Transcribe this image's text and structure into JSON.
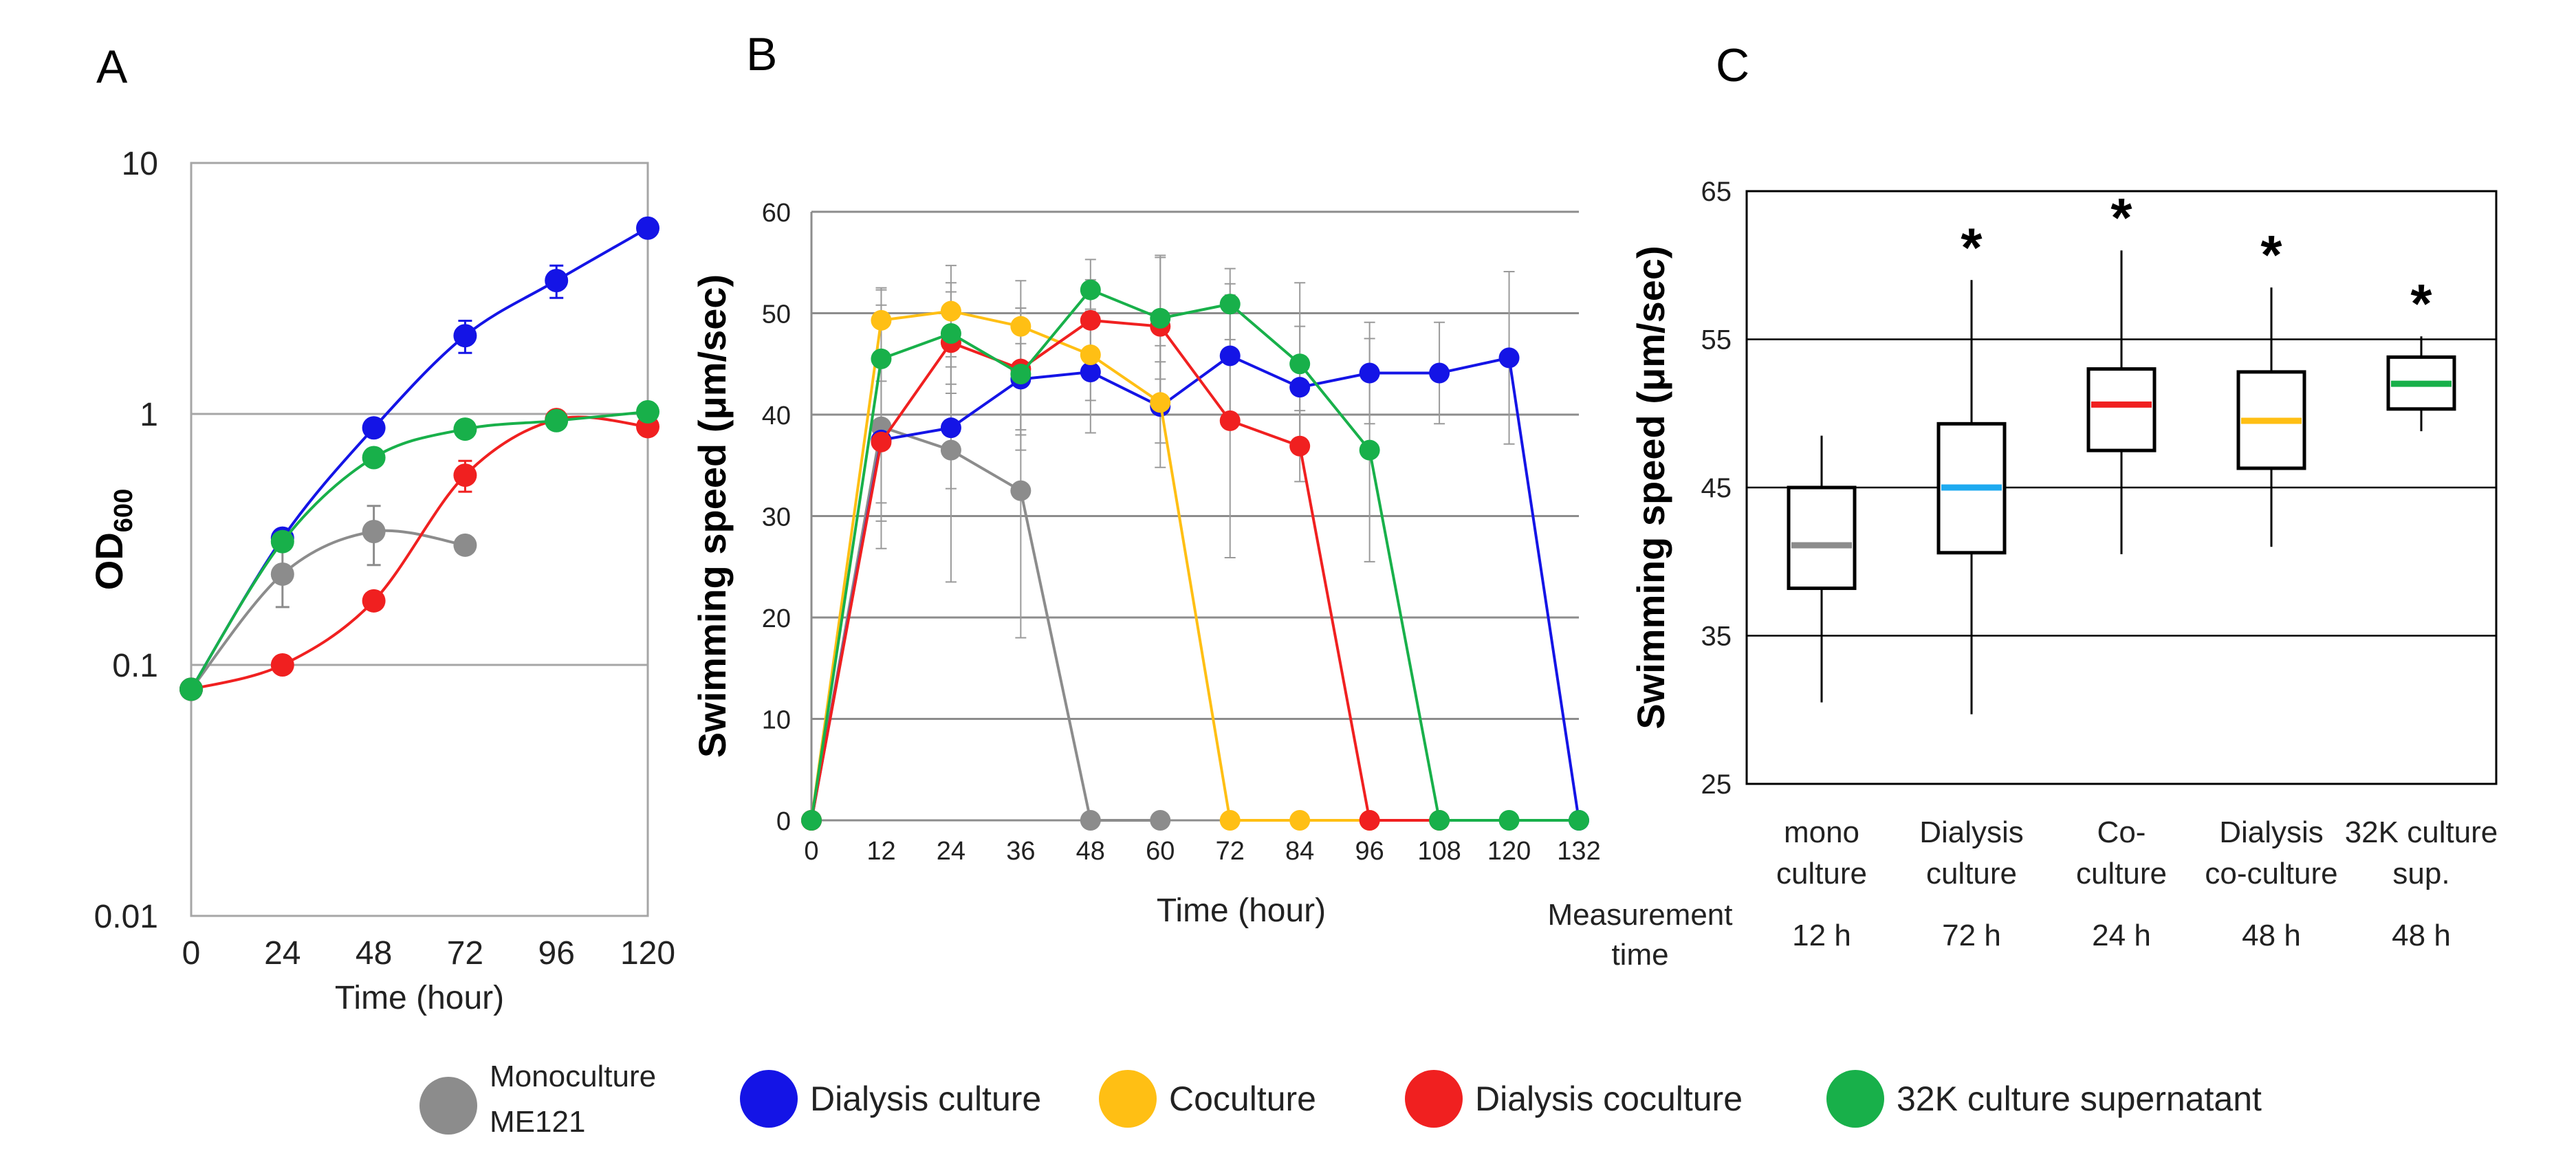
{
  "colors": {
    "monoculture": "#8c8c8c",
    "dialysis_culture": "#1414e6",
    "coculture": "#ffbf14",
    "dialysis_coculture": "#f02020",
    "supernatant": "#18b04a",
    "box_mono": "#8c8c8c",
    "box_dialysis": "#1eaaf0",
    "box_coculture": "#f02020",
    "box_dialysis_coculture": "#ffbf14",
    "box_supernatant": "#18b04a"
  },
  "legend": {
    "items": [
      {
        "key": "monoculture",
        "label": "Monoculture\nME121"
      },
      {
        "key": "dialysis_culture",
        "label": "Dialysis culture"
      },
      {
        "key": "coculture",
        "label": "Coculture"
      },
      {
        "key": "dialysis_coculture",
        "label": "Dialysis coculture"
      },
      {
        "key": "supernatant",
        "label": "32K culture supernatant"
      }
    ]
  },
  "chart_data": [
    {
      "panel": "A",
      "type": "line",
      "ylabel": "OD",
      "ylabel_sub": "600",
      "xlabel": "Time (hour)",
      "yscale": "log",
      "ylim": [
        0.01,
        10
      ],
      "yticks": [
        0.01,
        0.1,
        1,
        10
      ],
      "ytick_labels": [
        "0.01",
        "0.1",
        "1",
        "10"
      ],
      "xlim": [
        0,
        120
      ],
      "xticks": [
        0,
        24,
        48,
        72,
        96,
        120
      ],
      "xtick_labels": [
        "0",
        "24",
        "48",
        "72",
        "96",
        "120"
      ],
      "grid": true,
      "series": [
        {
          "key": "monoculture",
          "name": "Monoculture ME121",
          "x": [
            0,
            24,
            48,
            72
          ],
          "y": [
            0.08,
            0.23,
            0.34,
            0.3
          ],
          "err": [
            0,
            0.06,
            0.09,
            0.02
          ]
        },
        {
          "key": "dialysis_culture",
          "name": "Dialysis culture",
          "x": [
            0,
            24,
            48,
            72,
            96,
            120
          ],
          "y": [
            0.08,
            0.32,
            0.88,
            2.05,
            3.4,
            5.5
          ],
          "err": [
            0,
            0.02,
            0.05,
            0.3,
            0.5,
            0.3
          ]
        },
        {
          "key": "dialysis_coculture",
          "name": "Dialysis coculture",
          "x": [
            0,
            24,
            48,
            72,
            96,
            120
          ],
          "y": [
            0.08,
            0.1,
            0.18,
            0.57,
            0.95,
            0.89
          ],
          "err": [
            0,
            0.005,
            0.01,
            0.08,
            0.05,
            0.04
          ]
        },
        {
          "key": "supernatant",
          "name": "32K culture supernatant",
          "x": [
            0,
            24,
            48,
            72,
            96,
            120
          ],
          "y": [
            0.08,
            0.31,
            0.67,
            0.87,
            0.94,
            1.02
          ],
          "err": [
            0,
            0.02,
            0.04,
            0.04,
            0.04,
            0.04
          ]
        }
      ]
    },
    {
      "panel": "B",
      "type": "line",
      "ylabel": "Swimming speed (μm/sec)",
      "xlabel": "Time (hour)",
      "ylim": [
        0,
        60
      ],
      "yticks": [
        0,
        10,
        20,
        30,
        40,
        50,
        60
      ],
      "ytick_labels": [
        "0",
        "10",
        "20",
        "30",
        "40",
        "50",
        "60"
      ],
      "xlim": [
        0,
        132
      ],
      "xticks": [
        0,
        12,
        24,
        36,
        48,
        60,
        72,
        84,
        96,
        108,
        120,
        132
      ],
      "xtick_labels": [
        "0",
        "12",
        "24",
        "36",
        "48",
        "60",
        "72",
        "84",
        "96",
        "108",
        "120",
        "132"
      ],
      "grid": true,
      "series": [
        {
          "key": "monoculture",
          "name": "Monoculture ME121",
          "x": [
            0,
            12,
            24,
            36,
            48,
            60
          ],
          "y": [
            0,
            38.8,
            36.5,
            32.5,
            0,
            0
          ],
          "err": [
            0,
            12,
            13,
            14.5,
            0,
            0
          ]
        },
        {
          "key": "dialysis_culture",
          "name": "Dialysis culture",
          "x": [
            0,
            12,
            24,
            36,
            48,
            60,
            72,
            84,
            96,
            108,
            120,
            132
          ],
          "y": [
            0,
            37.5,
            38.7,
            43.5,
            44.2,
            40.8,
            45.8,
            42.7,
            44.1,
            44.1,
            45.6,
            0
          ],
          "err": [
            0,
            8,
            6,
            7,
            6,
            6,
            6,
            6,
            5,
            5,
            8.5,
            0
          ]
        },
        {
          "key": "coculture",
          "name": "Coculture",
          "x": [
            0,
            12,
            24,
            36,
            48,
            60,
            72,
            84,
            96
          ],
          "y": [
            0,
            49.3,
            50.2,
            48.7,
            45.9,
            41.2,
            0,
            0,
            0
          ],
          "err": [
            0,
            3,
            4.5,
            4.5,
            4.5,
            4,
            0,
            0,
            0
          ]
        },
        {
          "key": "dialysis_coculture",
          "name": "Dialysis coculture",
          "x": [
            0,
            12,
            24,
            36,
            48,
            60,
            72,
            84,
            96,
            108
          ],
          "y": [
            0,
            37.3,
            47.1,
            44.5,
            49.3,
            48.7,
            39.4,
            36.9,
            0,
            0
          ],
          "err": [
            0,
            6,
            5,
            6,
            4,
            7,
            13.5,
            3.5,
            0,
            0
          ]
        },
        {
          "key": "supernatant",
          "name": "32K culture supernatant",
          "x": [
            0,
            12,
            24,
            36,
            48,
            60,
            72,
            84,
            96,
            108,
            120,
            132
          ],
          "y": [
            0,
            45.5,
            48,
            44,
            52.3,
            49.5,
            50.9,
            45,
            36.5,
            0,
            0,
            0
          ],
          "err": [
            0,
            7,
            5,
            6,
            3,
            6,
            3.5,
            8,
            11,
            0,
            0,
            0
          ]
        }
      ]
    },
    {
      "panel": "C",
      "type": "box",
      "ylabel": "Swimming speed (μm/sec)",
      "ylim": [
        25,
        65
      ],
      "yticks": [
        25,
        35,
        45,
        55,
        65
      ],
      "ytick_labels": [
        "25",
        "35",
        "45",
        "55",
        "65"
      ],
      "grid": true,
      "xlabel": "Measurement\ntime",
      "categories": [
        {
          "key": "box_mono",
          "label": "mono\nculture",
          "time": "12 h",
          "min": 30.5,
          "q1": 38.2,
          "median": 41.1,
          "q3": 45,
          "max": 48.5,
          "star": ""
        },
        {
          "key": "box_dialysis",
          "label": "Dialysis\nculture",
          "time": "72 h",
          "min": 29.7,
          "q1": 40.6,
          "median": 45,
          "q3": 49.3,
          "max": 59,
          "star": "*"
        },
        {
          "key": "box_coculture",
          "label": "Co-\nculture",
          "time": "24 h",
          "min": 40.5,
          "q1": 47.5,
          "median": 50.6,
          "q3": 53,
          "max": 61,
          "star": "*"
        },
        {
          "key": "box_dialysis_coculture",
          "label": "Dialysis\nco-culture",
          "time": "48 h",
          "min": 41,
          "q1": 46.3,
          "median": 49.5,
          "q3": 52.8,
          "max": 58.5,
          "star": "*"
        },
        {
          "key": "box_supernatant",
          "label": "32K culture\nsup.",
          "time": "48 h",
          "min": 48.8,
          "q1": 50.3,
          "median": 52,
          "q3": 53.8,
          "max": 55.2,
          "star": "*"
        }
      ]
    }
  ],
  "panels": {
    "a": "A",
    "b": "B",
    "c": "C"
  }
}
